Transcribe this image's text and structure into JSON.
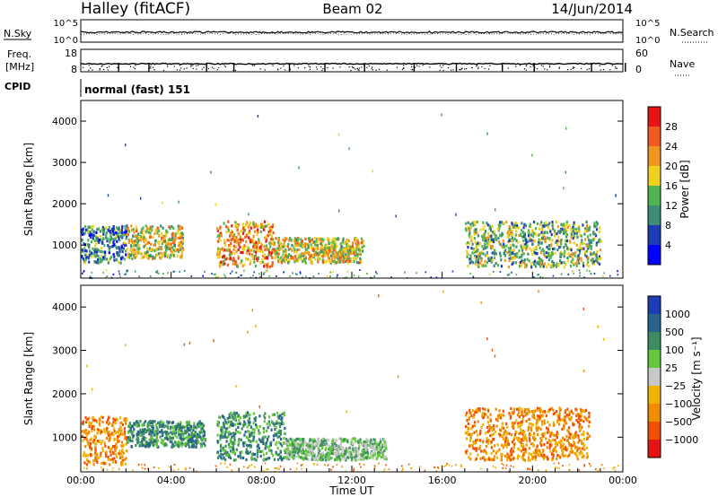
{
  "header": {
    "station": "Halley (fitACF)",
    "beam": "Beam 02",
    "date": "14/Jun/2014"
  },
  "top_panels": {
    "nsky_label": "N.Sky",
    "nsearch_label": "N.Search",
    "nave_label": "Nave",
    "freq_label_line1": "Freq.",
    "freq_label_line2": "[MHz]",
    "cpid_label": "CPID",
    "cpid_value": "normal (fast) 151",
    "noise_ticks_left": [
      "10^5",
      "10^0"
    ],
    "noise_ticks_right": [
      "10^5",
      "10^0"
    ],
    "freq_ticks": [
      "18",
      "8"
    ],
    "nave_ticks": [
      "60",
      "0"
    ]
  },
  "colors": {
    "power_scale": [
      "#0000ff",
      "#1e3cb4",
      "#3c8c78",
      "#50b450",
      "#f0d21e",
      "#f0961e",
      "#f05a1e",
      "#e61414"
    ],
    "velocity_scale": [
      "#1e3cb4",
      "#28648c",
      "#3c8c64",
      "#64c83c",
      "#c8c8c8",
      "#f0b400",
      "#f08c00",
      "#f05000",
      "#e61414"
    ]
  },
  "chart_data": [
    {
      "type": "heatmap",
      "xlabel": "",
      "ylabel": "Slant Range [km]",
      "x_range_hours": [
        0,
        24
      ],
      "ylim": [
        200,
        4500
      ],
      "yticks": [
        1000,
        2000,
        3000,
        4000
      ],
      "colorbar": {
        "label": "Power [dB]",
        "range": [
          0,
          32
        ],
        "ticks": [
          "4",
          "8",
          "12",
          "16",
          "20",
          "24",
          "28"
        ]
      },
      "echo_regions": [
        {
          "t_start": 0.0,
          "t_end": 2.0,
          "range_min": 600,
          "range_max": 1500,
          "dominant_power_db": 10
        },
        {
          "t_start": 2.0,
          "t_end": 4.5,
          "range_min": 700,
          "range_max": 1500,
          "dominant_power_db": 18
        },
        {
          "t_start": 6.0,
          "t_end": 8.5,
          "range_min": 500,
          "range_max": 1600,
          "dominant_power_db": 20
        },
        {
          "t_start": 8.5,
          "t_end": 12.5,
          "range_min": 600,
          "range_max": 1200,
          "dominant_power_db": 16
        },
        {
          "t_start": 17.0,
          "t_end": 23.0,
          "range_min": 500,
          "range_max": 1600,
          "dominant_power_db": 14
        }
      ]
    },
    {
      "type": "heatmap",
      "xlabel": "Time UT",
      "ylabel": "Slant Range [km]",
      "x_range_hours": [
        0,
        24
      ],
      "ylim": [
        200,
        4500
      ],
      "yticks": [
        1000,
        2000,
        3000,
        4000
      ],
      "xticks": [
        "00:00",
        "04:00",
        "08:00",
        "12:00",
        "16:00",
        "20:00",
        "00:00"
      ],
      "colorbar": {
        "label": "Velocity [m s⁻¹]",
        "range": [
          -1000,
          1000
        ],
        "ticks": [
          "1000",
          "500",
          "100",
          "25",
          "−25",
          "−100",
          "−500",
          "−1000"
        ]
      },
      "echo_regions": [
        {
          "t_start": 0.0,
          "t_end": 2.0,
          "range_min": 400,
          "range_max": 1500,
          "dominant_velocity": -300
        },
        {
          "t_start": 2.0,
          "t_end": 5.5,
          "range_min": 800,
          "range_max": 1400,
          "dominant_velocity": 300
        },
        {
          "t_start": 6.0,
          "t_end": 9.0,
          "range_min": 500,
          "range_max": 1600,
          "dominant_velocity": 200
        },
        {
          "t_start": 9.0,
          "t_end": 13.5,
          "range_min": 500,
          "range_max": 1000,
          "dominant_velocity": 80
        },
        {
          "t_start": 17.0,
          "t_end": 22.5,
          "range_min": 500,
          "range_max": 1700,
          "dominant_velocity": -400
        }
      ]
    }
  ]
}
